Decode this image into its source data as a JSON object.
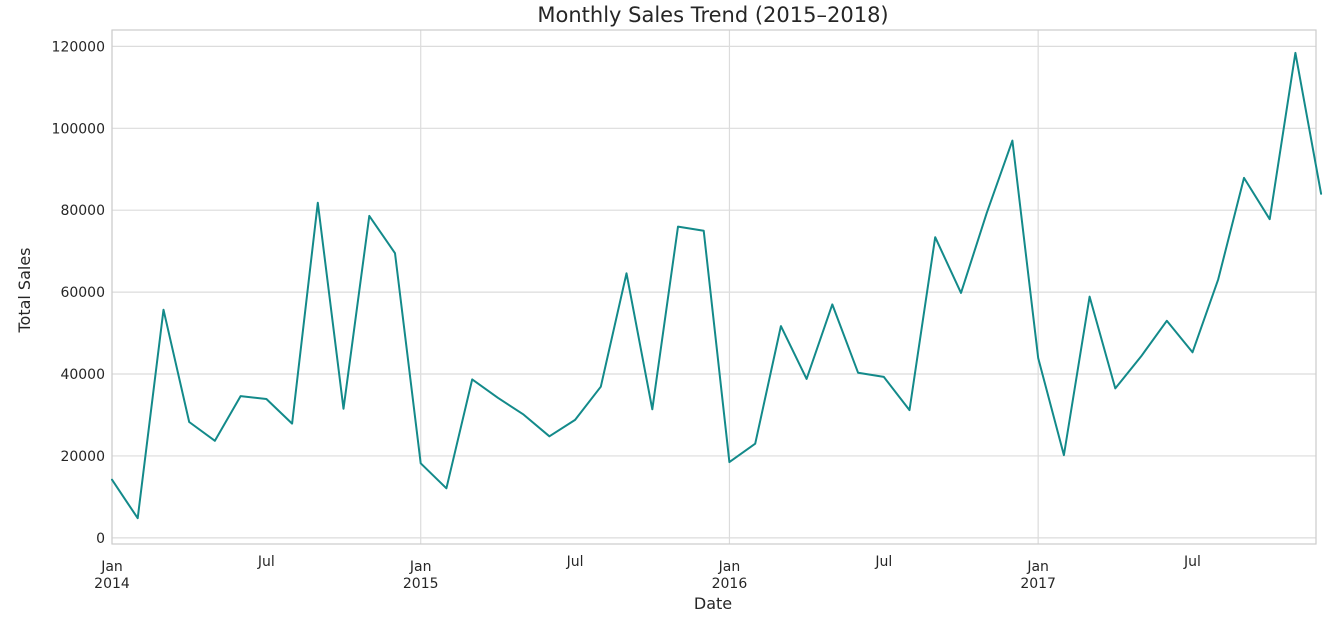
{
  "chart_data": {
    "type": "line",
    "title": "Monthly Sales Trend (2015–2018)",
    "xlabel": "Date",
    "ylabel": "Total Sales",
    "x_range": [
      "2014-01",
      "2017-12"
    ],
    "ylim": [
      -1500,
      124000
    ],
    "y_ticks": [
      0,
      20000,
      40000,
      60000,
      80000,
      100000,
      120000
    ],
    "x_ticks": [
      {
        "date": "2014-01",
        "line1": "Jan",
        "line2": "2014",
        "gridline": true
      },
      {
        "date": "2014-07",
        "line1": "Jul",
        "line2": "",
        "gridline": false
      },
      {
        "date": "2015-01",
        "line1": "Jan",
        "line2": "2015",
        "gridline": true
      },
      {
        "date": "2015-07",
        "line1": "Jul",
        "line2": "",
        "gridline": false
      },
      {
        "date": "2016-01",
        "line1": "Jan",
        "line2": "2016",
        "gridline": true
      },
      {
        "date": "2016-07",
        "line1": "Jul",
        "line2": "",
        "gridline": false
      },
      {
        "date": "2017-01",
        "line1": "Jan",
        "line2": "2017",
        "gridline": true
      },
      {
        "date": "2017-07",
        "line1": "Jul",
        "line2": "",
        "gridline": false
      }
    ],
    "grid": true,
    "line_color": "#138a8a",
    "x": [
      "2014-01",
      "2014-02",
      "2014-03",
      "2014-04",
      "2014-05",
      "2014-06",
      "2014-07",
      "2014-08",
      "2014-09",
      "2014-10",
      "2014-11",
      "2014-12",
      "2015-01",
      "2015-02",
      "2015-03",
      "2015-04",
      "2015-05",
      "2015-06",
      "2015-07",
      "2015-08",
      "2015-09",
      "2015-10",
      "2015-11",
      "2015-12",
      "2016-01",
      "2016-02",
      "2016-03",
      "2016-04",
      "2016-05",
      "2016-06",
      "2016-07",
      "2016-08",
      "2016-09",
      "2016-10",
      "2016-11",
      "2016-12",
      "2017-01",
      "2017-02",
      "2017-03",
      "2017-04",
      "2017-05",
      "2017-06",
      "2017-07",
      "2017-08",
      "2017-09",
      "2017-10",
      "2017-11",
      "2017-12"
    ],
    "values": [
      14200,
      4800,
      55700,
      28300,
      23700,
      34600,
      33900,
      27900,
      81800,
      31500,
      78600,
      69500,
      18200,
      12100,
      38700,
      34200,
      30100,
      24800,
      28800,
      36900,
      64600,
      31400,
      76000,
      75000,
      18500,
      23000,
      51700,
      38800,
      57000,
      40300,
      39300,
      31200,
      73400,
      59800,
      79300,
      97000,
      43900,
      20200,
      58900,
      36500,
      44300,
      53000,
      45300,
      63100,
      87900,
      77800,
      118400,
      84000
    ]
  }
}
